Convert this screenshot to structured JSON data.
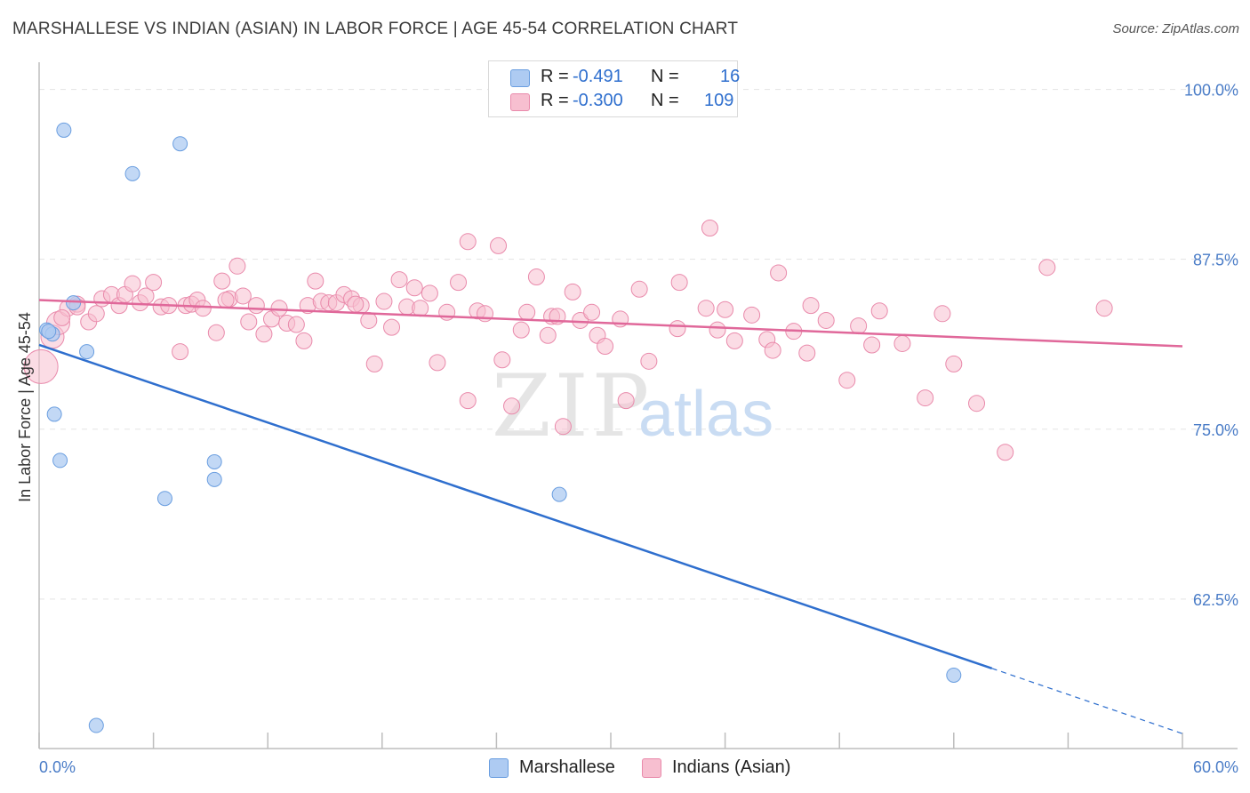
{
  "title": "MARSHALLESE VS INDIAN (ASIAN) IN LABOR FORCE | AGE 45-54 CORRELATION CHART",
  "source": "Source: ZipAtlas.com",
  "watermark": {
    "zip": "ZIP",
    "atlas": "atlas"
  },
  "legend": {
    "rows": [
      {
        "r_label": "R =",
        "r_value": "-0.491",
        "n_label": "N =",
        "n_value": "16",
        "color": "#aecbf2",
        "border": "#6a9ee0"
      },
      {
        "r_label": "R =",
        "r_value": "-0.300",
        "n_label": "N =",
        "n_value": "109",
        "color": "#f7bfd0",
        "border": "#e98aab"
      }
    ]
  },
  "bottom_legend": {
    "marshallese": "Marshallese",
    "indians": "Indians (Asian)"
  },
  "colors": {
    "blue_fill": "#aecbf2",
    "blue_stroke": "#6a9ee0",
    "blue_line": "#2f6fce",
    "pink_fill": "#f7bfd0",
    "pink_stroke": "#e98aab",
    "pink_line": "#e0689a",
    "tick_text": "#4a7cc7",
    "grid": "#e3e3e3"
  },
  "chart_data": {
    "type": "scatter",
    "title": "MARSHALLESE VS INDIAN (ASIAN) IN LABOR FORCE | AGE 45-54 CORRELATION CHART",
    "xlabel": "",
    "ylabel": "In Labor Force | Age 45-54",
    "xlim": [
      0,
      60
    ],
    "ylim": [
      51.5,
      102
    ],
    "x_tick_labels": [
      "0.0%",
      "60.0%"
    ],
    "y_ticks": [
      62.5,
      75.0,
      87.5,
      100.0
    ],
    "y_tick_labels": [
      "62.5%",
      "75.0%",
      "87.5%",
      "100.0%"
    ],
    "grid": "horizontal dashed",
    "series": [
      {
        "name": "Marshallese",
        "color": "#aecbf2",
        "points": [
          [
            0.4,
            82.3
          ],
          [
            0.7,
            82.0
          ],
          [
            1.3,
            97.0
          ],
          [
            1.8,
            84.3
          ],
          [
            2.5,
            80.7
          ],
          [
            0.8,
            76.1
          ],
          [
            1.1,
            72.7
          ],
          [
            4.9,
            93.8
          ],
          [
            7.4,
            96.0
          ],
          [
            6.6,
            69.9
          ],
          [
            9.2,
            71.3
          ],
          [
            9.2,
            72.6
          ],
          [
            27.3,
            70.2
          ],
          [
            48.0,
            56.9
          ],
          [
            3.0,
            53.2
          ],
          [
            0.5,
            82.2
          ]
        ],
        "trend": {
          "x": [
            0.0,
            50.0
          ],
          "y": [
            81.2,
            57.4
          ]
        },
        "trend_dashed": {
          "x": [
            50.0,
            60.0
          ],
          "y": [
            57.4,
            52.6
          ]
        }
      },
      {
        "name": "Indians (Asian)",
        "color": "#f7bfd0",
        "points": [
          [
            0.1,
            79.6
          ],
          [
            0.7,
            81.8
          ],
          [
            1.0,
            82.8
          ],
          [
            1.5,
            83.9
          ],
          [
            2.0,
            84.2
          ],
          [
            2.6,
            82.9
          ],
          [
            3.0,
            83.5
          ],
          [
            3.3,
            84.6
          ],
          [
            3.8,
            84.9
          ],
          [
            4.2,
            84.1
          ],
          [
            4.5,
            84.9
          ],
          [
            4.9,
            85.7
          ],
          [
            5.3,
            84.3
          ],
          [
            5.6,
            84.8
          ],
          [
            6.0,
            85.8
          ],
          [
            6.4,
            84.0
          ],
          [
            6.8,
            84.1
          ],
          [
            7.4,
            80.7
          ],
          [
            7.7,
            84.1
          ],
          [
            8.0,
            84.2
          ],
          [
            8.3,
            84.5
          ],
          [
            8.6,
            83.9
          ],
          [
            9.3,
            82.1
          ],
          [
            9.6,
            85.9
          ],
          [
            10.0,
            84.6
          ],
          [
            10.4,
            87.0
          ],
          [
            10.7,
            84.8
          ],
          [
            11.0,
            82.9
          ],
          [
            11.4,
            84.1
          ],
          [
            11.8,
            82.0
          ],
          [
            12.2,
            83.1
          ],
          [
            12.6,
            83.9
          ],
          [
            13.0,
            82.8
          ],
          [
            13.5,
            82.7
          ],
          [
            13.9,
            81.5
          ],
          [
            14.1,
            84.1
          ],
          [
            14.5,
            85.9
          ],
          [
            14.8,
            84.4
          ],
          [
            15.2,
            84.3
          ],
          [
            15.6,
            84.3
          ],
          [
            16.0,
            84.9
          ],
          [
            16.4,
            84.6
          ],
          [
            16.9,
            84.1
          ],
          [
            17.3,
            83.0
          ],
          [
            17.6,
            79.8
          ],
          [
            18.1,
            84.4
          ],
          [
            18.5,
            82.5
          ],
          [
            18.9,
            86.0
          ],
          [
            19.3,
            84.0
          ],
          [
            19.7,
            85.4
          ],
          [
            20.0,
            83.9
          ],
          [
            20.5,
            85.0
          ],
          [
            20.9,
            79.9
          ],
          [
            21.4,
            83.6
          ],
          [
            22.0,
            85.8
          ],
          [
            22.5,
            88.8
          ],
          [
            22.5,
            77.1
          ],
          [
            23.0,
            83.7
          ],
          [
            23.4,
            83.5
          ],
          [
            24.1,
            88.5
          ],
          [
            24.3,
            80.1
          ],
          [
            24.8,
            76.7
          ],
          [
            25.3,
            82.3
          ],
          [
            25.6,
            83.6
          ],
          [
            26.1,
            86.2
          ],
          [
            26.7,
            81.9
          ],
          [
            26.9,
            83.3
          ],
          [
            27.5,
            75.2
          ],
          [
            28.0,
            85.1
          ],
          [
            28.4,
            83.0
          ],
          [
            29.0,
            83.6
          ],
          [
            29.3,
            81.9
          ],
          [
            29.7,
            81.1
          ],
          [
            30.5,
            83.1
          ],
          [
            30.8,
            77.1
          ],
          [
            31.5,
            85.3
          ],
          [
            32.0,
            80.0
          ],
          [
            33.5,
            82.4
          ],
          [
            33.6,
            85.8
          ],
          [
            35.0,
            83.9
          ],
          [
            35.6,
            82.3
          ],
          [
            36.0,
            83.8
          ],
          [
            36.5,
            81.5
          ],
          [
            37.4,
            83.4
          ],
          [
            38.2,
            81.6
          ],
          [
            38.5,
            80.8
          ],
          [
            38.8,
            86.5
          ],
          [
            39.6,
            82.2
          ],
          [
            40.3,
            80.6
          ],
          [
            40.5,
            84.1
          ],
          [
            41.3,
            83.0
          ],
          [
            42.4,
            78.6
          ],
          [
            43.0,
            82.6
          ],
          [
            43.7,
            81.2
          ],
          [
            44.1,
            83.7
          ],
          [
            45.3,
            81.3
          ],
          [
            46.5,
            77.3
          ],
          [
            47.4,
            83.5
          ],
          [
            48.0,
            79.8
          ],
          [
            49.2,
            76.9
          ],
          [
            50.7,
            73.3
          ],
          [
            52.9,
            86.9
          ],
          [
            55.9,
            83.9
          ],
          [
            35.2,
            89.8
          ],
          [
            1.2,
            83.2
          ],
          [
            2.0,
            84.0
          ],
          [
            9.8,
            84.5
          ],
          [
            16.6,
            84.2
          ],
          [
            27.2,
            83.3
          ]
        ],
        "trend": {
          "x": [
            0.0,
            60.0
          ],
          "y": [
            84.5,
            81.1
          ]
        }
      }
    ]
  }
}
